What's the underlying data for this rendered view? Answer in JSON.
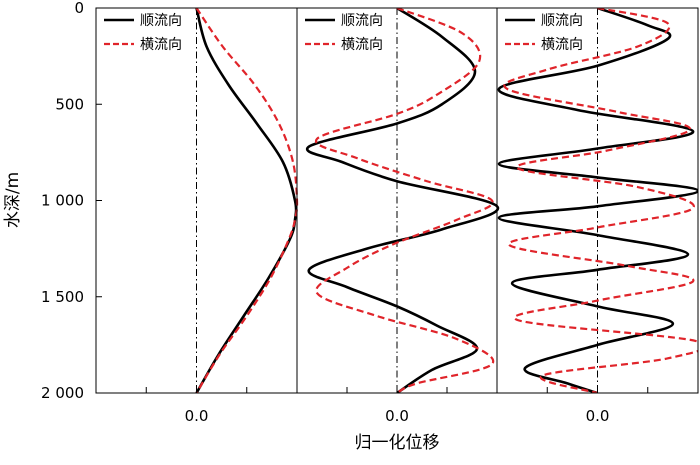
{
  "chart_data": {
    "type": "line",
    "xlabel": "归一化位移",
    "ylabel": "水深/m",
    "ylim": [
      0,
      2000
    ],
    "y_inverted": true,
    "yticks": [
      0,
      500,
      1000,
      1500,
      2000
    ],
    "ytick_labels": [
      "0",
      "500",
      "1 000",
      "1 500",
      "2 000"
    ],
    "xlim": [
      -1,
      1
    ],
    "xticks": [
      -0.5,
      0.0,
      0.5
    ],
    "xtick_label": "0.0",
    "grid": false,
    "legend_position": "top-left",
    "legend": [
      {
        "label": "顺流向",
        "color": "#000000",
        "style": "solid"
      },
      {
        "label": "横流向",
        "color": "#e0242a",
        "style": "dashed"
      }
    ],
    "panels": [
      {
        "id": "panel-1",
        "xlim": [
          -1,
          1
        ],
        "series": [
          {
            "name": "顺流向",
            "color": "#000000",
            "style": "solid",
            "depth": [
              0,
              200,
              400,
              600,
              800,
              1000,
              1100,
              1200,
              1400,
              1600,
              1800,
              2000
            ],
            "value": [
              0.0,
              0.1,
              0.32,
              0.6,
              0.86,
              0.98,
              0.98,
              0.93,
              0.72,
              0.47,
              0.22,
              0.0
            ]
          },
          {
            "name": "横流向",
            "color": "#e0242a",
            "style": "dashed",
            "depth": [
              0,
              200,
              400,
              600,
              800,
              1000,
              1100,
              1200,
              1400,
              1600,
              1800,
              2000
            ],
            "value": [
              0.0,
              0.26,
              0.58,
              0.82,
              0.96,
              1.0,
              0.98,
              0.92,
              0.74,
              0.5,
              0.23,
              0.0
            ]
          }
        ]
      },
      {
        "id": "panel-2",
        "xlim": [
          -1,
          1
        ],
        "series": [
          {
            "name": "顺流向",
            "color": "#000000",
            "style": "solid",
            "depth": [
              0,
              150,
              330,
              500,
              600,
              720,
              800,
              900,
              1030,
              1150,
              1250,
              1360,
              1450,
              1550,
              1650,
              1770,
              1880,
              2000
            ],
            "value": [
              0.0,
              0.45,
              0.78,
              0.45,
              0.0,
              -0.88,
              -0.55,
              0.0,
              1.0,
              0.45,
              -0.3,
              -0.88,
              -0.5,
              0.0,
              0.4,
              0.8,
              0.35,
              0.0
            ]
          },
          {
            "name": "横流向",
            "color": "#e0242a",
            "style": "dashed",
            "depth": [
              0,
              130,
              280,
              450,
              550,
              680,
              780,
              900,
              1000,
              1100,
              1230,
              1350,
              1480,
              1600,
              1720,
              1850,
              1950,
              2000
            ],
            "value": [
              0.0,
              0.65,
              0.82,
              0.4,
              0.0,
              -0.8,
              -0.4,
              0.3,
              0.95,
              0.6,
              -0.05,
              -0.5,
              -0.8,
              -0.2,
              0.6,
              0.95,
              0.2,
              0.0
            ]
          }
        ]
      },
      {
        "id": "panel-3",
        "xlim": [
          -1,
          1
        ],
        "series": [
          {
            "name": "顺流向",
            "color": "#000000",
            "style": "solid",
            "depth": [
              0,
              90,
              160,
              300,
              420,
              530,
              640,
              730,
              810,
              880,
              950,
              1030,
              1090,
              1180,
              1280,
              1360,
              1430,
              1550,
              1640,
              1750,
              1870,
              1950,
              2000
            ],
            "value": [
              0.0,
              0.5,
              0.7,
              0.0,
              -0.98,
              -0.2,
              0.95,
              0.0,
              -0.98,
              0.0,
              1.0,
              0.0,
              -0.98,
              0.0,
              0.9,
              0.0,
              -0.85,
              0.0,
              0.75,
              0.0,
              -0.72,
              -0.3,
              0.0
            ]
          },
          {
            "name": "横流向",
            "color": "#e0242a",
            "style": "dashed",
            "depth": [
              0,
              80,
              200,
              320,
              420,
              540,
              630,
              740,
              830,
              930,
              1040,
              1140,
              1230,
              1340,
              1420,
              1520,
              1620,
              1730,
              1820,
              1910,
              2000
            ],
            "value": [
              0.0,
              0.7,
              0.4,
              -0.5,
              -0.9,
              0.2,
              0.92,
              0.1,
              -0.8,
              0.4,
              0.95,
              0.0,
              -0.88,
              0.3,
              0.95,
              0.0,
              -0.8,
              0.98,
              0.7,
              -0.55,
              0.0
            ]
          }
        ]
      }
    ]
  }
}
